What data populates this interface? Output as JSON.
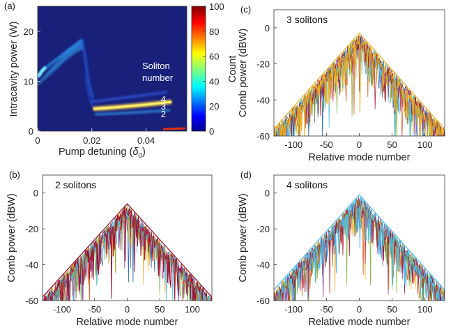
{
  "chart_data": [
    {
      "panel": "(a)",
      "type": "heatmap",
      "xlabel_main": "Pump detuning (",
      "xlabel_sym": "δ",
      "xlabel_sub": "0",
      "xlabel_end": ")",
      "ylabel": "Intracavity power (W)",
      "xlim": [
        0,
        0.055
      ],
      "ylim": [
        0,
        25
      ],
      "x_ticks": [
        "0",
        "0.02",
        "0.04"
      ],
      "y_ticks": [
        "0",
        "10",
        "20"
      ],
      "annotation_lines": [
        "Soliton",
        "number"
      ],
      "branch_labels": [
        {
          "text": "4",
          "x": 0.048,
          "y": 6.4
        },
        {
          "text": "3",
          "x": 0.048,
          "y": 5.0
        },
        {
          "text": "2",
          "x": 0.048,
          "y": 3.5
        }
      ],
      "colorbar": {
        "label": "Count",
        "ticks": [
          "0",
          "20",
          "40",
          "60",
          "80",
          "100"
        ],
        "range": [
          0,
          100
        ],
        "colormap": "jet"
      },
      "background_color": "#18207a"
    },
    {
      "panel": "(c)",
      "type": "line",
      "title": "3 solitons",
      "xlabel": "Relative mode number",
      "ylabel": "Comb power (dBW)",
      "xlim": [
        -130,
        130
      ],
      "ylim": [
        -60,
        10
      ],
      "x_ticks": [
        "-100",
        "-50",
        "0",
        "50",
        "100"
      ],
      "y_ticks": [
        "0",
        "-20",
        "-40",
        "-60"
      ],
      "envelope_peak_dBW": -3,
      "envelope_edge_dBW": -56,
      "colors": [
        "#1f5ba8",
        "#d95319",
        "#edb120",
        "#7e2f8e",
        "#77ac30",
        "#4dbeee",
        "#a2142f"
      ],
      "dominant_color": "#edb120"
    },
    {
      "panel": "(b)",
      "type": "line",
      "title": "2 solitons",
      "xlabel": "Relative mode number",
      "ylabel": "Comb power (dBW)",
      "xlim": [
        -130,
        130
      ],
      "ylim": [
        -60,
        10
      ],
      "x_ticks": [
        "-100",
        "-50",
        "0",
        "50",
        "100"
      ],
      "y_ticks": [
        "0",
        "-20",
        "-40",
        "-60"
      ],
      "envelope_peak_dBW": -6,
      "envelope_edge_dBW": -58,
      "colors": [
        "#1f5ba8",
        "#d95319",
        "#edb120",
        "#7e2f8e",
        "#77ac30",
        "#4dbeee",
        "#a2142f"
      ],
      "dominant_color": "#a2142f"
    },
    {
      "panel": "(d)",
      "type": "line",
      "title": "4 solitons",
      "xlabel": "Relative mode number",
      "ylabel": "Comb power (dBW)",
      "xlim": [
        -130,
        130
      ],
      "ylim": [
        -60,
        10
      ],
      "x_ticks": [
        "-100",
        "-50",
        "0",
        "50",
        "100"
      ],
      "y_ticks": [
        "0",
        "-20",
        "-40",
        "-60"
      ],
      "envelope_peak_dBW": -1,
      "envelope_edge_dBW": -54,
      "colors": [
        "#1f5ba8",
        "#d95319",
        "#edb120",
        "#7e2f8e",
        "#77ac30",
        "#4dbeee",
        "#a2142f"
      ],
      "dominant_color": "#4dbeee"
    }
  ]
}
